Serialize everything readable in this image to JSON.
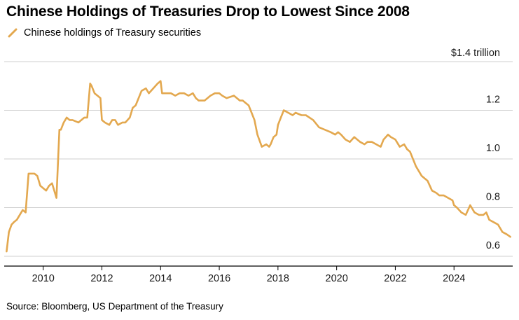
{
  "title": "Chinese Holdings of Treasuries Drop to Lowest Since 2008",
  "legend_label": "Chinese holdings of Treasury securities",
  "source": "Source: Bloomberg, US Department of the Treasury",
  "colors": {
    "series": "#e3a84f",
    "grid": "#cfcfcf",
    "axis": "#000000",
    "text": "#1a1a1a"
  },
  "chart_data": {
    "type": "line",
    "title": "Chinese Holdings of Treasuries Drop to Lowest Since 2008",
    "xlabel": "",
    "ylabel": "",
    "xlim": [
      2008.67,
      2026.0
    ],
    "ylim": [
      0.6,
      1.4
    ],
    "y_ticks": [
      {
        "value": 0.6,
        "label": "0.6"
      },
      {
        "value": 0.8,
        "label": "0.8"
      },
      {
        "value": 1.0,
        "label": "1.0"
      },
      {
        "value": 1.2,
        "label": "1.2"
      },
      {
        "value": 1.4,
        "label": "$1.4 trillion"
      }
    ],
    "x_ticks": [
      2010,
      2012,
      2014,
      2016,
      2018,
      2020,
      2022,
      2024
    ],
    "grid": "horizontal",
    "legend_position": "top-left",
    "series": [
      {
        "name": "Chinese holdings of Treasury securities",
        "x": [
          2008.75,
          2008.83,
          2008.92,
          2009.0,
          2009.1,
          2009.2,
          2009.3,
          2009.4,
          2009.5,
          2009.55,
          2009.6,
          2009.7,
          2009.8,
          2009.9,
          2010.0,
          2010.1,
          2010.2,
          2010.3,
          2010.45,
          2010.55,
          2010.6,
          2010.7,
          2010.8,
          2010.9,
          2011.0,
          2011.2,
          2011.4,
          2011.5,
          2011.6,
          2011.65,
          2011.75,
          2011.85,
          2011.95,
          2012.0,
          2012.1,
          2012.25,
          2012.35,
          2012.45,
          2012.55,
          2012.7,
          2012.8,
          2012.95,
          2013.05,
          2013.15,
          2013.35,
          2013.5,
          2013.6,
          2013.75,
          2013.9,
          2014.0,
          2014.05,
          2014.2,
          2014.35,
          2014.5,
          2014.65,
          2014.8,
          2014.95,
          2015.1,
          2015.2,
          2015.3,
          2015.5,
          2015.7,
          2015.85,
          2016.0,
          2016.1,
          2016.25,
          2016.5,
          2016.7,
          2016.8,
          2016.9,
          2017.0,
          2017.1,
          2017.2,
          2017.3,
          2017.45,
          2017.6,
          2017.7,
          2017.75,
          2017.85,
          2017.95,
          2018.0,
          2018.1,
          2018.2,
          2018.35,
          2018.5,
          2018.6,
          2018.8,
          2018.95,
          2019.2,
          2019.4,
          2019.6,
          2019.8,
          2019.95,
          2020.05,
          2020.15,
          2020.3,
          2020.45,
          2020.6,
          2020.8,
          2020.95,
          2021.05,
          2021.2,
          2021.35,
          2021.5,
          2021.6,
          2021.75,
          2021.85,
          2022.0,
          2022.15,
          2022.3,
          2022.4,
          2022.5,
          2022.6,
          2022.7,
          2022.9,
          2023.1,
          2023.25,
          2023.4,
          2023.5,
          2023.65,
          2023.8,
          2023.95,
          2024.0,
          2024.1,
          2024.25,
          2024.4,
          2024.55,
          2024.7,
          2024.85,
          2025.0,
          2025.1,
          2025.2,
          2025.35,
          2025.5,
          2025.65,
          2025.8,
          2025.92
        ],
        "values": [
          0.62,
          0.7,
          0.73,
          0.74,
          0.75,
          0.77,
          0.79,
          0.78,
          0.94,
          0.94,
          0.94,
          0.94,
          0.93,
          0.89,
          0.88,
          0.87,
          0.89,
          0.9,
          0.84,
          1.12,
          1.12,
          1.15,
          1.17,
          1.16,
          1.16,
          1.15,
          1.17,
          1.17,
          1.31,
          1.3,
          1.27,
          1.26,
          1.25,
          1.16,
          1.15,
          1.14,
          1.16,
          1.16,
          1.14,
          1.15,
          1.15,
          1.17,
          1.21,
          1.22,
          1.28,
          1.29,
          1.27,
          1.29,
          1.31,
          1.32,
          1.27,
          1.27,
          1.27,
          1.26,
          1.27,
          1.27,
          1.26,
          1.27,
          1.25,
          1.24,
          1.24,
          1.26,
          1.27,
          1.27,
          1.26,
          1.25,
          1.26,
          1.24,
          1.24,
          1.23,
          1.22,
          1.19,
          1.16,
          1.1,
          1.05,
          1.06,
          1.05,
          1.06,
          1.09,
          1.1,
          1.14,
          1.17,
          1.2,
          1.19,
          1.18,
          1.19,
          1.18,
          1.18,
          1.16,
          1.13,
          1.12,
          1.11,
          1.1,
          1.11,
          1.1,
          1.08,
          1.07,
          1.09,
          1.07,
          1.06,
          1.07,
          1.07,
          1.06,
          1.05,
          1.08,
          1.1,
          1.09,
          1.08,
          1.05,
          1.06,
          1.04,
          1.03,
          1.0,
          0.97,
          0.93,
          0.91,
          0.87,
          0.86,
          0.85,
          0.85,
          0.84,
          0.83,
          0.81,
          0.8,
          0.78,
          0.77,
          0.81,
          0.78,
          0.77,
          0.77,
          0.78,
          0.75,
          0.74,
          0.73,
          0.7,
          0.69,
          0.68
        ]
      }
    ]
  }
}
